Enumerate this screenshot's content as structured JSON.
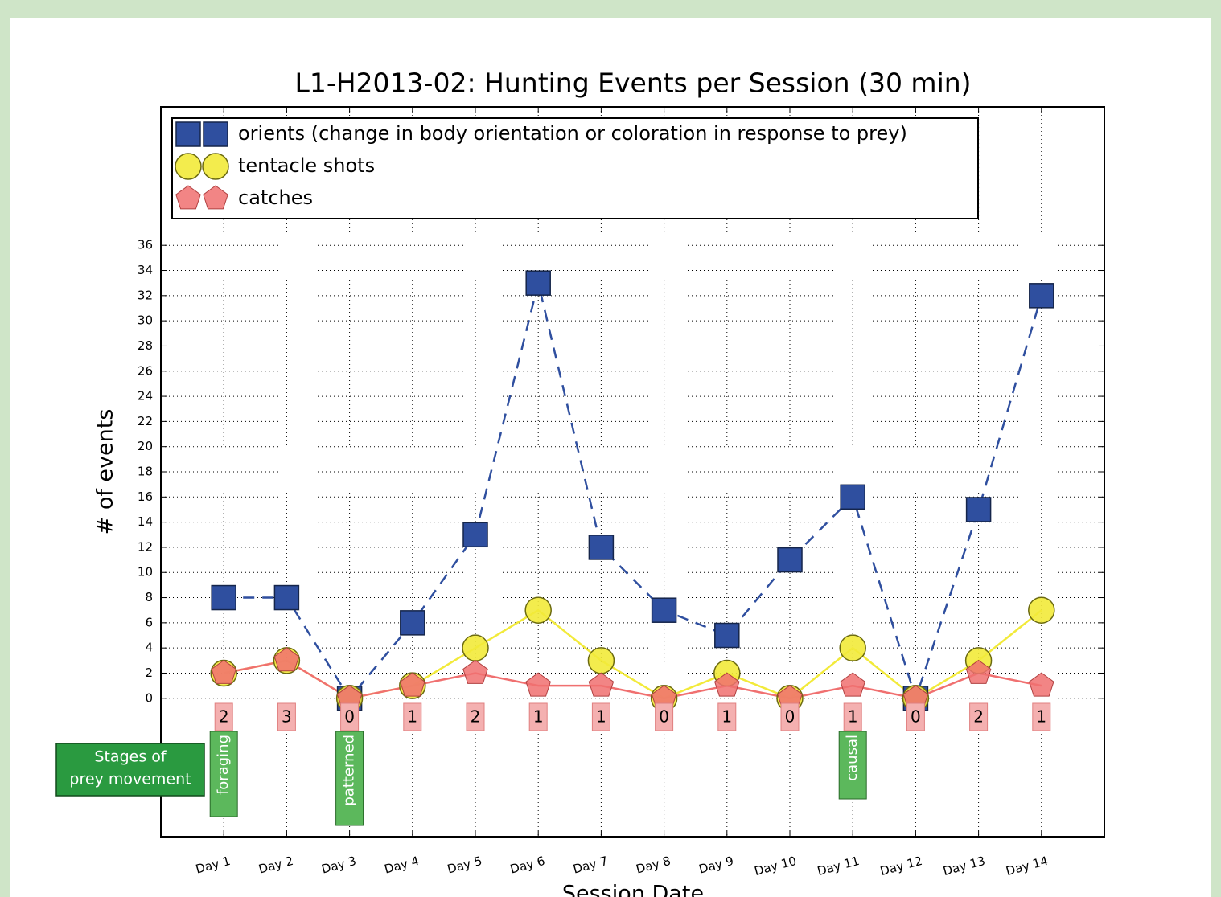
{
  "chart_data": {
    "type": "line",
    "title": "L1-H2013-02: Hunting Events per Session (30 min)",
    "y_label": "# of events",
    "x_label": "Session Date",
    "categories": [
      "Day 1",
      "Day 2",
      "Day 3",
      "Day 4",
      "Day 5",
      "Day 6",
      "Day 7",
      "Day 8",
      "Day 9",
      "Day 10",
      "Day 11",
      "Day 12",
      "Day 13",
      "Day 14"
    ],
    "series": [
      {
        "name": "orients (change in body orientation or coloration in response to prey)",
        "color": "#2f4f9f",
        "linestyle": "dashed",
        "marker": "square",
        "values": [
          8,
          8,
          0,
          6,
          13,
          33,
          12,
          7,
          5,
          11,
          16,
          0,
          15,
          32
        ]
      },
      {
        "name": "tentacle shots",
        "color": "#f2ea3a",
        "linestyle": "solid",
        "marker": "circle",
        "values": [
          2,
          3,
          0,
          1,
          4,
          7,
          3,
          0,
          2,
          0,
          4,
          0,
          3,
          7
        ]
      },
      {
        "name": "catches",
        "color": "#f07070",
        "linestyle": "solid",
        "marker": "pentagon",
        "values": [
          2,
          3,
          0,
          1,
          2,
          1,
          1,
          0,
          1,
          0,
          1,
          0,
          2,
          1
        ]
      }
    ],
    "ylim": [
      -11,
      47
    ],
    "yticks": [
      0,
      2,
      4,
      6,
      8,
      10,
      12,
      14,
      16,
      18,
      20,
      22,
      24,
      26,
      28,
      30,
      32,
      34,
      36
    ],
    "grid": true,
    "legend": "upper left",
    "stages_title": [
      "Stages of",
      "prey movement"
    ],
    "stages": [
      {
        "text": "foraging",
        "category": "Day 1"
      },
      {
        "text": "patterned",
        "category": "Day 3"
      },
      {
        "text": "causal",
        "category": "Day 11"
      }
    ]
  }
}
